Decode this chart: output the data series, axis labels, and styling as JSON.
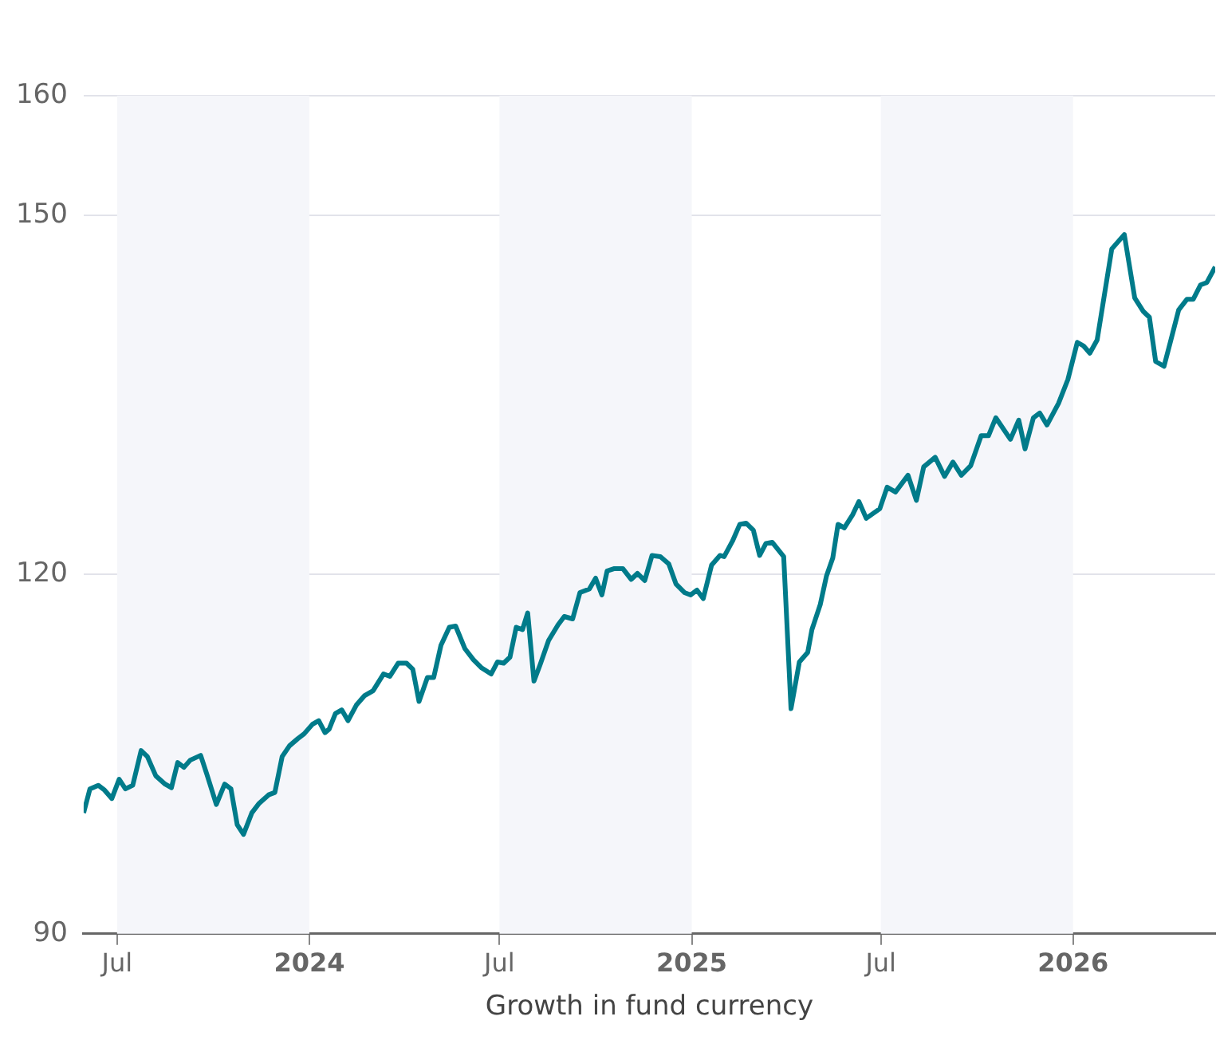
{
  "chart_data": {
    "type": "line",
    "xlabel": "Growth in fund currency",
    "xlim": [
      "2023-05-30",
      "2026-05-17"
    ],
    "xticks": [
      {
        "value": "2023-07-01",
        "label": "Jul"
      },
      {
        "value": "2024-01-01",
        "label": "2024"
      },
      {
        "value": "2024-07-01",
        "label": "Jul"
      },
      {
        "value": "2025-01-01",
        "label": "2025"
      },
      {
        "value": "2025-07-01",
        "label": "Jul"
      },
      {
        "value": "2026-01-01",
        "label": "2026"
      }
    ],
    "ylim": [
      90,
      160
    ],
    "yticks": [
      90,
      120,
      150,
      160
    ],
    "grid": "y",
    "marker": "none",
    "line_style": "solid",
    "bands": [
      {
        "axis": "x",
        "from": "2023-07-01",
        "to": "2024-01-01",
        "color": "#f5f6fa"
      },
      {
        "axis": "x",
        "from": "2024-07-01",
        "to": "2025-01-01",
        "color": "#f5f6fa"
      },
      {
        "axis": "x",
        "from": "2025-07-01",
        "to": "2026-01-01",
        "color": "#f5f6fa"
      }
    ],
    "x": [
      "2023-05-30",
      "2023-06-05",
      "2023-06-13",
      "2023-06-19",
      "2023-06-26",
      "2023-07-03",
      "2023-07-09",
      "2023-07-16",
      "2023-07-24",
      "2023-07-30",
      "2023-08-07",
      "2023-08-16",
      "2023-08-22",
      "2023-08-28",
      "2023-09-03",
      "2023-09-09",
      "2023-09-19",
      "2023-09-25",
      "2023-10-04",
      "2023-10-12",
      "2023-10-18",
      "2023-10-24",
      "2023-10-30",
      "2023-11-07",
      "2023-11-14",
      "2023-11-23",
      "2023-11-29",
      "2023-12-06",
      "2023-12-13",
      "2023-12-21",
      "2023-12-27",
      "2024-01-04",
      "2024-01-10",
      "2024-01-16",
      "2024-01-20",
      "2024-01-26",
      "2024-02-01",
      "2024-02-07",
      "2024-02-15",
      "2024-02-23",
      "2024-03-02",
      "2024-03-12",
      "2024-03-18",
      "2024-03-26",
      "2024-04-03",
      "2024-04-09",
      "2024-04-15",
      "2024-04-23",
      "2024-04-29",
      "2024-05-06",
      "2024-05-14",
      "2024-05-20",
      "2024-05-29",
      "2024-06-06",
      "2024-06-14",
      "2024-06-23",
      "2024-06-29",
      "2024-07-05",
      "2024-07-11",
      "2024-07-17",
      "2024-07-23",
      "2024-07-28",
      "2024-08-03",
      "2024-08-09",
      "2024-08-17",
      "2024-08-26",
      "2024-09-01",
      "2024-09-09",
      "2024-09-16",
      "2024-09-25",
      "2024-10-01",
      "2024-10-07",
      "2024-10-12",
      "2024-10-19",
      "2024-10-27",
      "2024-11-04",
      "2024-11-10",
      "2024-11-17",
      "2024-11-24",
      "2024-12-02",
      "2024-12-10",
      "2024-12-17",
      "2024-12-25",
      "2024-12-31",
      "2025-01-06",
      "2025-01-12",
      "2025-01-20",
      "2025-01-28",
      "2025-02-01",
      "2025-02-09",
      "2025-02-16",
      "2025-02-22",
      "2025-03-01",
      "2025-03-07",
      "2025-03-13",
      "2025-03-19",
      "2025-03-30",
      "2025-04-06",
      "2025-04-14",
      "2025-04-22",
      "2025-04-26",
      "2025-05-04",
      "2025-05-10",
      "2025-05-16",
      "2025-05-21",
      "2025-05-27",
      "2025-06-04",
      "2025-06-10",
      "2025-06-17",
      "2025-06-30",
      "2025-07-07",
      "2025-07-15",
      "2025-07-27",
      "2025-08-04",
      "2025-08-11",
      "2025-08-22",
      "2025-08-31",
      "2025-09-08",
      "2025-09-16",
      "2025-09-25",
      "2025-10-05",
      "2025-10-12",
      "2025-10-19",
      "2025-11-02",
      "2025-11-10",
      "2025-11-16",
      "2025-11-24",
      "2025-11-30",
      "2025-12-07",
      "2025-12-18",
      "2025-12-27",
      "2026-01-05",
      "2026-01-11",
      "2026-01-17",
      "2026-01-24",
      "2026-02-07",
      "2026-02-19",
      "2026-03-01",
      "2026-03-09",
      "2026-03-15",
      "2026-03-21",
      "2026-03-29",
      "2026-04-04",
      "2026-04-12",
      "2026-04-20",
      "2026-04-26",
      "2026-05-03",
      "2026-05-09",
      "2026-05-17"
    ],
    "series": [
      {
        "color": "#007b8a",
        "values": [
          100.1,
          102.1,
          102.4,
          102.0,
          101.3,
          102.9,
          102.1,
          102.4,
          105.3,
          104.8,
          103.2,
          102.5,
          102.2,
          104.3,
          103.9,
          104.5,
          104.9,
          103.3,
          100.8,
          102.5,
          102.1,
          99.1,
          98.3,
          100.1,
          100.9,
          101.6,
          101.8,
          104.8,
          105.7,
          106.3,
          106.7,
          107.5,
          107.8,
          106.8,
          107.1,
          108.4,
          108.7,
          107.8,
          109.1,
          109.9,
          110.3,
          111.7,
          111.5,
          112.6,
          112.6,
          112.1,
          109.4,
          111.4,
          111.4,
          114.1,
          115.6,
          115.7,
          113.8,
          112.9,
          112.2,
          111.7,
          112.7,
          112.6,
          113.1,
          115.6,
          115.4,
          116.8,
          111.1,
          112.5,
          114.5,
          115.8,
          116.5,
          116.3,
          118.5,
          118.8,
          119.7,
          118.3,
          120.3,
          120.5,
          120.5,
          119.6,
          120.1,
          119.5,
          121.6,
          121.5,
          120.9,
          119.2,
          118.5,
          118.3,
          118.7,
          118.0,
          120.8,
          121.6,
          121.5,
          122.8,
          124.2,
          124.3,
          123.7,
          121.6,
          122.6,
          122.7,
          121.5,
          108.8,
          112.7,
          113.5,
          115.4,
          117.5,
          119.9,
          121.4,
          124.2,
          123.9,
          125.0,
          126.1,
          124.7,
          125.5,
          127.3,
          126.9,
          128.3,
          126.2,
          129.0,
          129.8,
          128.2,
          129.4,
          128.3,
          129.1,
          131.6,
          131.6,
          133.1,
          131.3,
          132.9,
          130.5,
          133.1,
          133.5,
          132.5,
          134.3,
          136.3,
          139.4,
          139.1,
          138.5,
          139.6,
          147.2,
          148.4,
          143.1,
          142.0,
          141.5,
          137.8,
          137.4,
          139.4,
          142.1,
          143.0,
          143.0,
          144.2,
          144.4,
          145.7
        ]
      }
    ]
  }
}
